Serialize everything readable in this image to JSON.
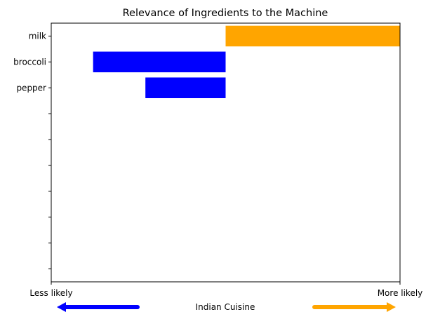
{
  "chart_data": {
    "type": "bar",
    "orientation": "horizontal-diverging",
    "title": "Relevance of Ingredients to the Machine",
    "categories": [
      "milk",
      "broccoli",
      "pepper"
    ],
    "values": [
      0.5,
      -0.38,
      -0.23
    ],
    "xlim": [
      -0.5,
      0.5
    ],
    "xtick_labels": {
      "left": "Less likely",
      "right": "More likely"
    },
    "xlabel": "Indian Cuisine",
    "y_tick_count": 10,
    "grid": false,
    "colors": {
      "positive": "#FFA500",
      "negative": "#0000FF",
      "axis": "#000000"
    },
    "arrows": [
      {
        "direction": "left",
        "color": "#0000FF"
      },
      {
        "direction": "right",
        "color": "#FFA500"
      }
    ]
  }
}
